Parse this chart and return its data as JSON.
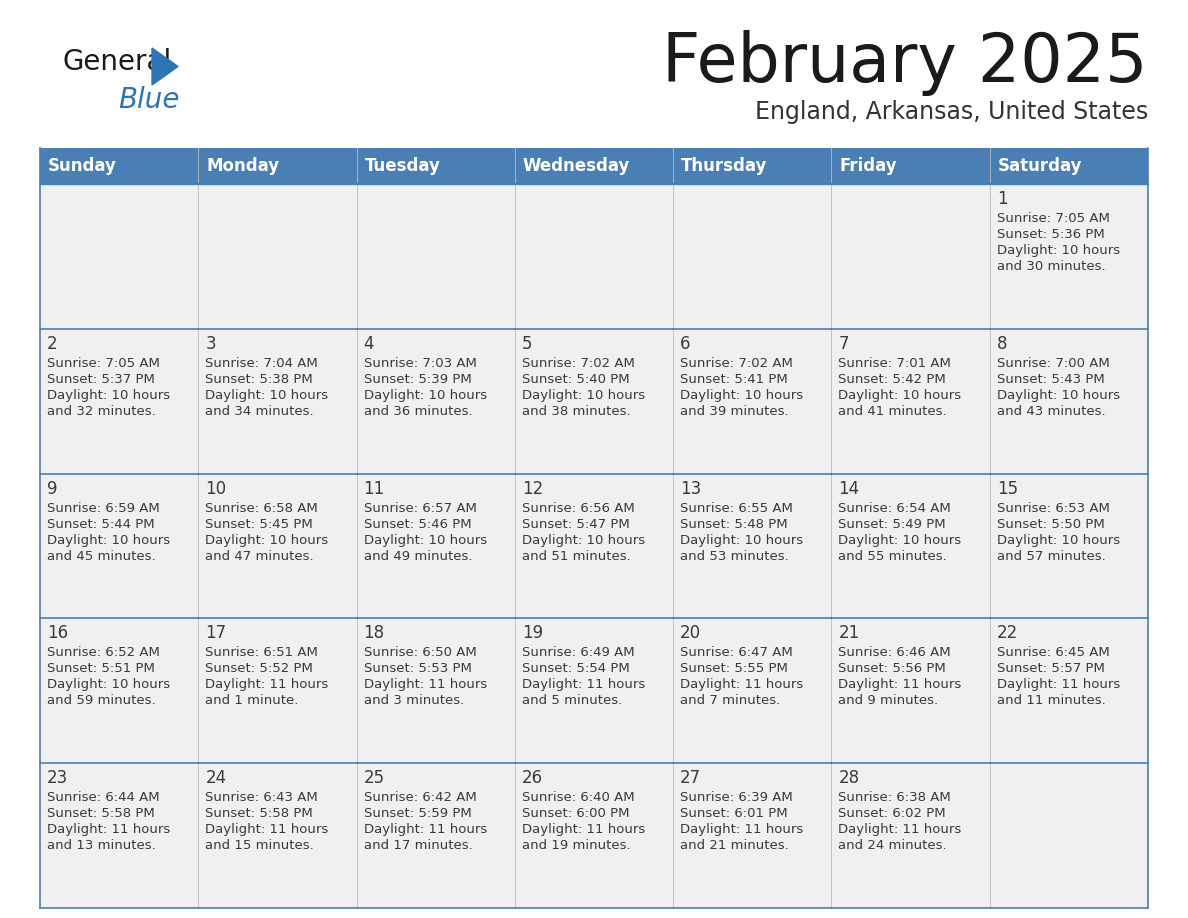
{
  "title": "February 2025",
  "subtitle": "England, Arkansas, United States",
  "days_of_week": [
    "Sunday",
    "Monday",
    "Tuesday",
    "Wednesday",
    "Thursday",
    "Friday",
    "Saturday"
  ],
  "header_bg": "#4a7fb5",
  "header_text": "#ffffff",
  "cell_bg": "#f0f0f0",
  "day_number_color": "#3a3a3a",
  "text_color": "#3a3a3a",
  "border_color": "#4a7fb5",
  "title_color": "#1a1a1a",
  "subtitle_color": "#333333",
  "logo_general_color": "#1a1a1a",
  "logo_blue_color": "#2e75b6",
  "calendar_data": [
    [
      null,
      null,
      null,
      null,
      null,
      null,
      {
        "day": 1,
        "sunrise": "7:05 AM",
        "sunset": "5:36 PM",
        "dl1": "Daylight: 10 hours",
        "dl2": "and 30 minutes."
      }
    ],
    [
      {
        "day": 2,
        "sunrise": "7:05 AM",
        "sunset": "5:37 PM",
        "dl1": "Daylight: 10 hours",
        "dl2": "and 32 minutes."
      },
      {
        "day": 3,
        "sunrise": "7:04 AM",
        "sunset": "5:38 PM",
        "dl1": "Daylight: 10 hours",
        "dl2": "and 34 minutes."
      },
      {
        "day": 4,
        "sunrise": "7:03 AM",
        "sunset": "5:39 PM",
        "dl1": "Daylight: 10 hours",
        "dl2": "and 36 minutes."
      },
      {
        "day": 5,
        "sunrise": "7:02 AM",
        "sunset": "5:40 PM",
        "dl1": "Daylight: 10 hours",
        "dl2": "and 38 minutes."
      },
      {
        "day": 6,
        "sunrise": "7:02 AM",
        "sunset": "5:41 PM",
        "dl1": "Daylight: 10 hours",
        "dl2": "and 39 minutes."
      },
      {
        "day": 7,
        "sunrise": "7:01 AM",
        "sunset": "5:42 PM",
        "dl1": "Daylight: 10 hours",
        "dl2": "and 41 minutes."
      },
      {
        "day": 8,
        "sunrise": "7:00 AM",
        "sunset": "5:43 PM",
        "dl1": "Daylight: 10 hours",
        "dl2": "and 43 minutes."
      }
    ],
    [
      {
        "day": 9,
        "sunrise": "6:59 AM",
        "sunset": "5:44 PM",
        "dl1": "Daylight: 10 hours",
        "dl2": "and 45 minutes."
      },
      {
        "day": 10,
        "sunrise": "6:58 AM",
        "sunset": "5:45 PM",
        "dl1": "Daylight: 10 hours",
        "dl2": "and 47 minutes."
      },
      {
        "day": 11,
        "sunrise": "6:57 AM",
        "sunset": "5:46 PM",
        "dl1": "Daylight: 10 hours",
        "dl2": "and 49 minutes."
      },
      {
        "day": 12,
        "sunrise": "6:56 AM",
        "sunset": "5:47 PM",
        "dl1": "Daylight: 10 hours",
        "dl2": "and 51 minutes."
      },
      {
        "day": 13,
        "sunrise": "6:55 AM",
        "sunset": "5:48 PM",
        "dl1": "Daylight: 10 hours",
        "dl2": "and 53 minutes."
      },
      {
        "day": 14,
        "sunrise": "6:54 AM",
        "sunset": "5:49 PM",
        "dl1": "Daylight: 10 hours",
        "dl2": "and 55 minutes."
      },
      {
        "day": 15,
        "sunrise": "6:53 AM",
        "sunset": "5:50 PM",
        "dl1": "Daylight: 10 hours",
        "dl2": "and 57 minutes."
      }
    ],
    [
      {
        "day": 16,
        "sunrise": "6:52 AM",
        "sunset": "5:51 PM",
        "dl1": "Daylight: 10 hours",
        "dl2": "and 59 minutes."
      },
      {
        "day": 17,
        "sunrise": "6:51 AM",
        "sunset": "5:52 PM",
        "dl1": "Daylight: 11 hours",
        "dl2": "and 1 minute."
      },
      {
        "day": 18,
        "sunrise": "6:50 AM",
        "sunset": "5:53 PM",
        "dl1": "Daylight: 11 hours",
        "dl2": "and 3 minutes."
      },
      {
        "day": 19,
        "sunrise": "6:49 AM",
        "sunset": "5:54 PM",
        "dl1": "Daylight: 11 hours",
        "dl2": "and 5 minutes."
      },
      {
        "day": 20,
        "sunrise": "6:47 AM",
        "sunset": "5:55 PM",
        "dl1": "Daylight: 11 hours",
        "dl2": "and 7 minutes."
      },
      {
        "day": 21,
        "sunrise": "6:46 AM",
        "sunset": "5:56 PM",
        "dl1": "Daylight: 11 hours",
        "dl2": "and 9 minutes."
      },
      {
        "day": 22,
        "sunrise": "6:45 AM",
        "sunset": "5:57 PM",
        "dl1": "Daylight: 11 hours",
        "dl2": "and 11 minutes."
      }
    ],
    [
      {
        "day": 23,
        "sunrise": "6:44 AM",
        "sunset": "5:58 PM",
        "dl1": "Daylight: 11 hours",
        "dl2": "and 13 minutes."
      },
      {
        "day": 24,
        "sunrise": "6:43 AM",
        "sunset": "5:58 PM",
        "dl1": "Daylight: 11 hours",
        "dl2": "and 15 minutes."
      },
      {
        "day": 25,
        "sunrise": "6:42 AM",
        "sunset": "5:59 PM",
        "dl1": "Daylight: 11 hours",
        "dl2": "and 17 minutes."
      },
      {
        "day": 26,
        "sunrise": "6:40 AM",
        "sunset": "6:00 PM",
        "dl1": "Daylight: 11 hours",
        "dl2": "and 19 minutes."
      },
      {
        "day": 27,
        "sunrise": "6:39 AM",
        "sunset": "6:01 PM",
        "dl1": "Daylight: 11 hours",
        "dl2": "and 21 minutes."
      },
      {
        "day": 28,
        "sunrise": "6:38 AM",
        "sunset": "6:02 PM",
        "dl1": "Daylight: 11 hours",
        "dl2": "and 24 minutes."
      },
      null
    ]
  ]
}
